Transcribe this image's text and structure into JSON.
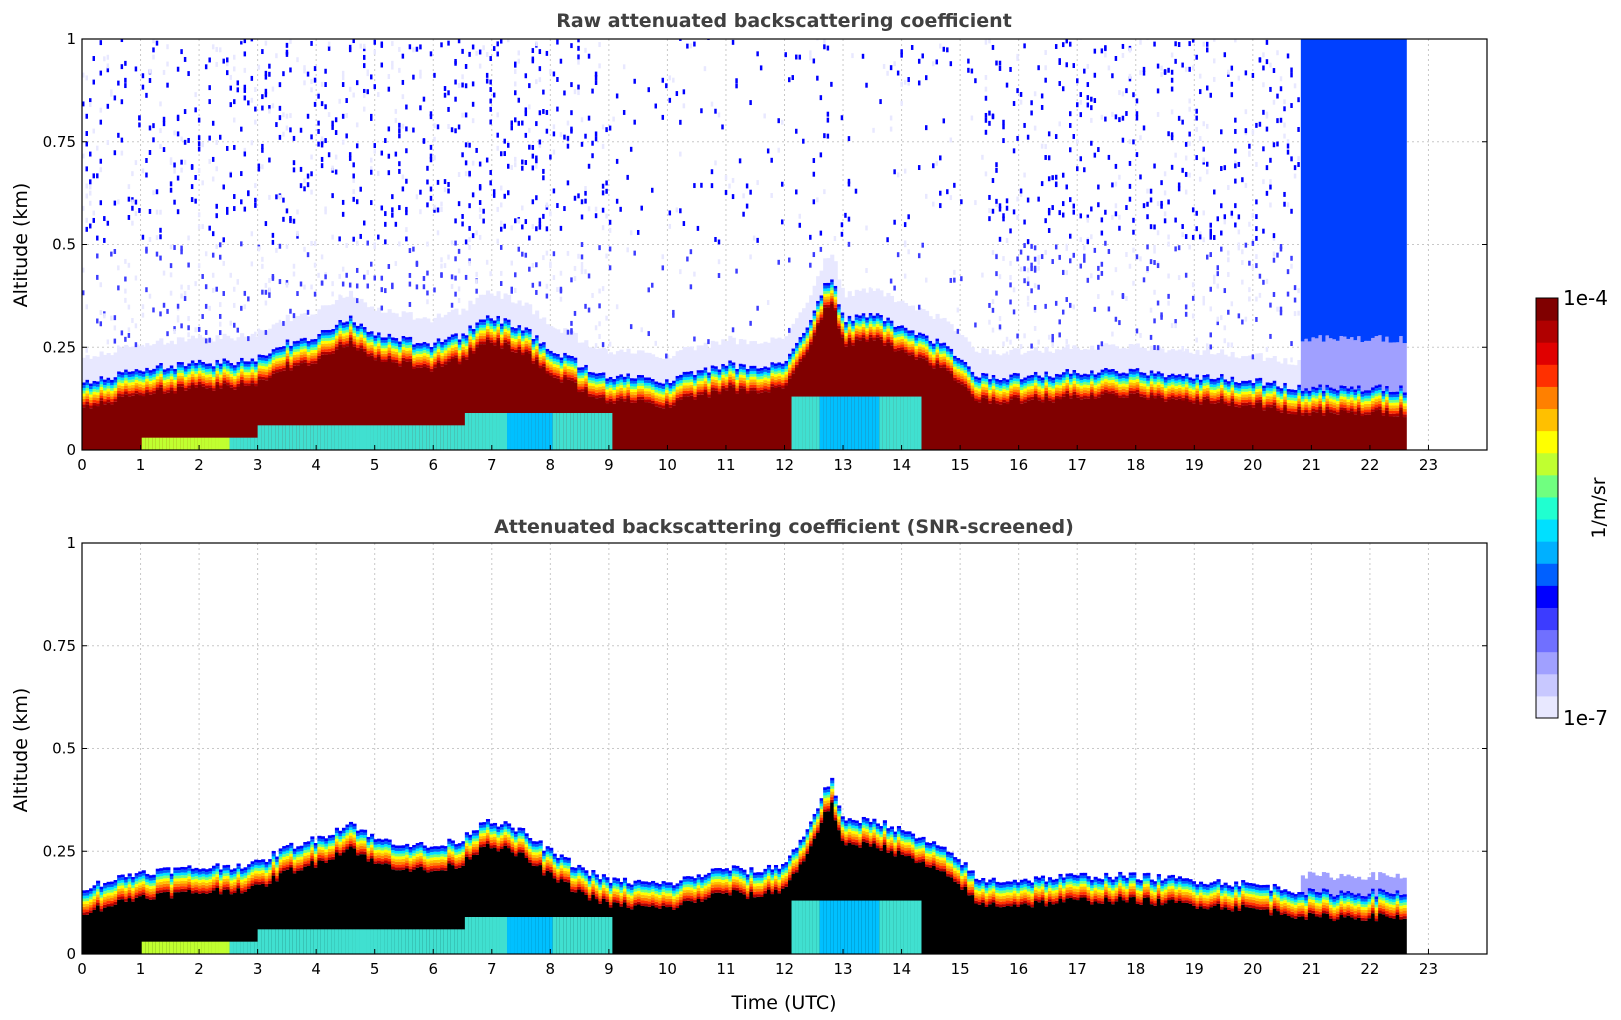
{
  "chart_data": [
    {
      "type": "heatmap",
      "title": "Raw attenuated backscattering coefficient",
      "xlabel": "",
      "ylabel": "Altitude (km)",
      "xlim": [
        0,
        24
      ],
      "ylim": [
        0,
        1
      ],
      "x_ticks": [
        "0",
        "1",
        "2",
        "3",
        "4",
        "5",
        "6",
        "7",
        "8",
        "9",
        "10",
        "11",
        "12",
        "13",
        "14",
        "15",
        "16",
        "17",
        "18",
        "19",
        "20",
        "21",
        "22",
        "23"
      ],
      "y_ticks": [
        "0",
        "0.25",
        "0.5",
        "0.75",
        "1"
      ],
      "grid": true,
      "data_end_time": 22.6,
      "layer_top_km": [
        [
          0,
          0.16
        ],
        [
          0.5,
          0.18
        ],
        [
          1,
          0.2
        ],
        [
          2,
          0.21
        ],
        [
          3,
          0.22
        ],
        [
          3.5,
          0.26
        ],
        [
          4,
          0.28
        ],
        [
          4.6,
          0.32
        ],
        [
          5,
          0.28
        ],
        [
          5.5,
          0.27
        ],
        [
          6,
          0.26
        ],
        [
          6.5,
          0.28
        ],
        [
          6.9,
          0.33
        ],
        [
          7.5,
          0.3
        ],
        [
          8,
          0.25
        ],
        [
          8.5,
          0.21
        ],
        [
          9,
          0.18
        ],
        [
          10,
          0.17
        ],
        [
          11,
          0.21
        ],
        [
          11.5,
          0.2
        ],
        [
          12,
          0.22
        ],
        [
          12.3,
          0.28
        ],
        [
          12.8,
          0.43
        ],
        [
          13,
          0.32
        ],
        [
          13.5,
          0.33
        ],
        [
          14,
          0.3
        ],
        [
          14.5,
          0.27
        ],
        [
          15,
          0.23
        ],
        [
          15.3,
          0.18
        ],
        [
          16,
          0.18
        ],
        [
          17,
          0.19
        ],
        [
          18,
          0.19
        ],
        [
          19,
          0.18
        ],
        [
          20,
          0.17
        ],
        [
          21,
          0.15
        ],
        [
          22,
          0.15
        ],
        [
          22.6,
          0.15
        ]
      ],
      "clear_air_noise": "high above 0.25 km before 9 UTC and after 15.5 UTC; strong noise after 20.8 UTC"
    },
    {
      "type": "heatmap",
      "title": "Attenuated backscattering coefficient (SNR-screened)",
      "xlabel": "Time (UTC)",
      "ylabel": "Altitude (km)",
      "xlim": [
        0,
        24
      ],
      "ylim": [
        0,
        1
      ],
      "x_ticks": [
        "0",
        "1",
        "2",
        "3",
        "4",
        "5",
        "6",
        "7",
        "8",
        "9",
        "10",
        "11",
        "12",
        "13",
        "14",
        "15",
        "16",
        "17",
        "18",
        "19",
        "20",
        "21",
        "22",
        "23"
      ],
      "y_ticks": [
        "0",
        "0.25",
        "0.5",
        "0.75",
        "1"
      ],
      "grid": true,
      "data_end_time": 22.6,
      "note": "Saturated values rendered black; noise above the boundary layer removed"
    }
  ],
  "colorbar": {
    "label": "1/m/sr",
    "max_label": "1e-4",
    "min_label": "1e-7",
    "scale": "log",
    "range": [
      1e-07,
      0.0001
    ],
    "colors": [
      "#e8e8ff",
      "#c8c8ff",
      "#a0a0ff",
      "#7070ff",
      "#3c3cff",
      "#0000ff",
      "#0060ff",
      "#00b0ff",
      "#00e0ff",
      "#20ffd0",
      "#70ff80",
      "#c0ff30",
      "#ffff00",
      "#ffc000",
      "#ff8000",
      "#ff3000",
      "#e00000",
      "#b00000",
      "#800000"
    ]
  }
}
